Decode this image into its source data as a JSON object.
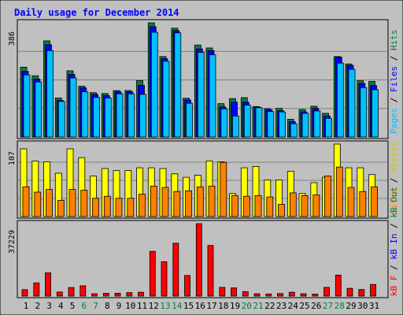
{
  "chart_data": {
    "type": "bar",
    "title": "Daily usage for December 2014",
    "days": [
      "1",
      "2",
      "3",
      "4",
      "5",
      "6",
      "7",
      "8",
      "9",
      "10",
      "11",
      "12",
      "13",
      "14",
      "15",
      "16",
      "17",
      "18",
      "19",
      "20",
      "21",
      "22",
      "23",
      "24",
      "25",
      "26",
      "27",
      "28",
      "29",
      "30",
      "31"
    ],
    "weekend_days": [
      "6",
      "7",
      "13",
      "14",
      "20",
      "21",
      "27",
      "28"
    ],
    "panels": [
      {
        "name": "top",
        "max_label": "386",
        "ymax": 386,
        "grid": true,
        "series": [
          {
            "name": "Hits",
            "color": "#008040",
            "values": [
              236,
              207,
              325,
              132,
              224,
              172,
              150,
              147,
              157,
              157,
              191,
              386,
              272,
              368,
              131,
              311,
              301,
              113,
              130,
              133,
              103,
              96,
              97,
              60,
              93,
              104,
              80,
              272,
              247,
              190,
              188
            ]
          },
          {
            "name": "Files",
            "color": "#0000ff",
            "values": [
              222,
              196,
              312,
              124,
              212,
              166,
              144,
              140,
              153,
              153,
              175,
              373,
              265,
              360,
              125,
              298,
              292,
              102,
              118,
              118,
              101,
              92,
              89,
              52,
              85,
              97,
              71,
              270,
              242,
              181,
              174
            ]
          },
          {
            "name": "Pages",
            "color": "#00c0ff",
            "values": [
              210,
              186,
              292,
              120,
              200,
              153,
              134,
              132,
              146,
              146,
              144,
              354,
              256,
              352,
              114,
              286,
              278,
              95,
              71,
              108,
              99,
              86,
              85,
              45,
              80,
              88,
              63,
              250,
              229,
              167,
              160
            ]
          }
        ]
      },
      {
        "name": "middle",
        "max_label": "107",
        "ymax": 107,
        "grid": true,
        "series": [
          {
            "name": "Visits",
            "color": "#ffff00",
            "values": [
              100,
              82,
              81,
              64,
              100,
              87,
              60,
              71,
              68,
              68,
              72,
              72,
              71,
              63,
              58,
              61,
              82,
              81,
              34,
              72,
              74,
              54,
              54,
              67,
              34,
              50,
              58,
              107,
              72,
              72,
              62
            ]
          },
          {
            "name": "Sites",
            "color": "#ff8000",
            "values": [
              44,
              36,
              40,
              24,
              40,
              39,
              27,
              30,
              27,
              27,
              33,
              45,
              43,
              37,
              38,
              44,
              45,
              80,
              31,
              30,
              31,
              29,
              18,
              35,
              31,
              32,
              60,
              73,
              43,
              37,
              44
            ]
          }
        ]
      },
      {
        "name": "bottom",
        "max_label": "37229",
        "ymax": 37229,
        "grid": false,
        "series": [
          {
            "name": "kB F",
            "color": "#ff0000",
            "values": [
              3300,
              6800,
              12000,
              2100,
              4400,
              5300,
              1200,
              1400,
              1500,
              1800,
              2000,
              23000,
              17700,
              27200,
              10600,
              37229,
              26000,
              4500,
              4200,
              2300,
              1200,
              1100,
              1300,
              2000,
              1200,
              1000,
              4500,
              10800,
              4000,
              3400,
              6000
            ]
          },
          {
            "name": "kB In",
            "color": "#0000ff",
            "values": []
          },
          {
            "name": "kB Out",
            "color": "#008040",
            "values": []
          }
        ]
      }
    ]
  },
  "colors": {
    "background": "#c0c0c0",
    "title": "#0000ff",
    "weekend_label": "#008040",
    "weekday_label": "#000000",
    "grid": "#808080"
  }
}
